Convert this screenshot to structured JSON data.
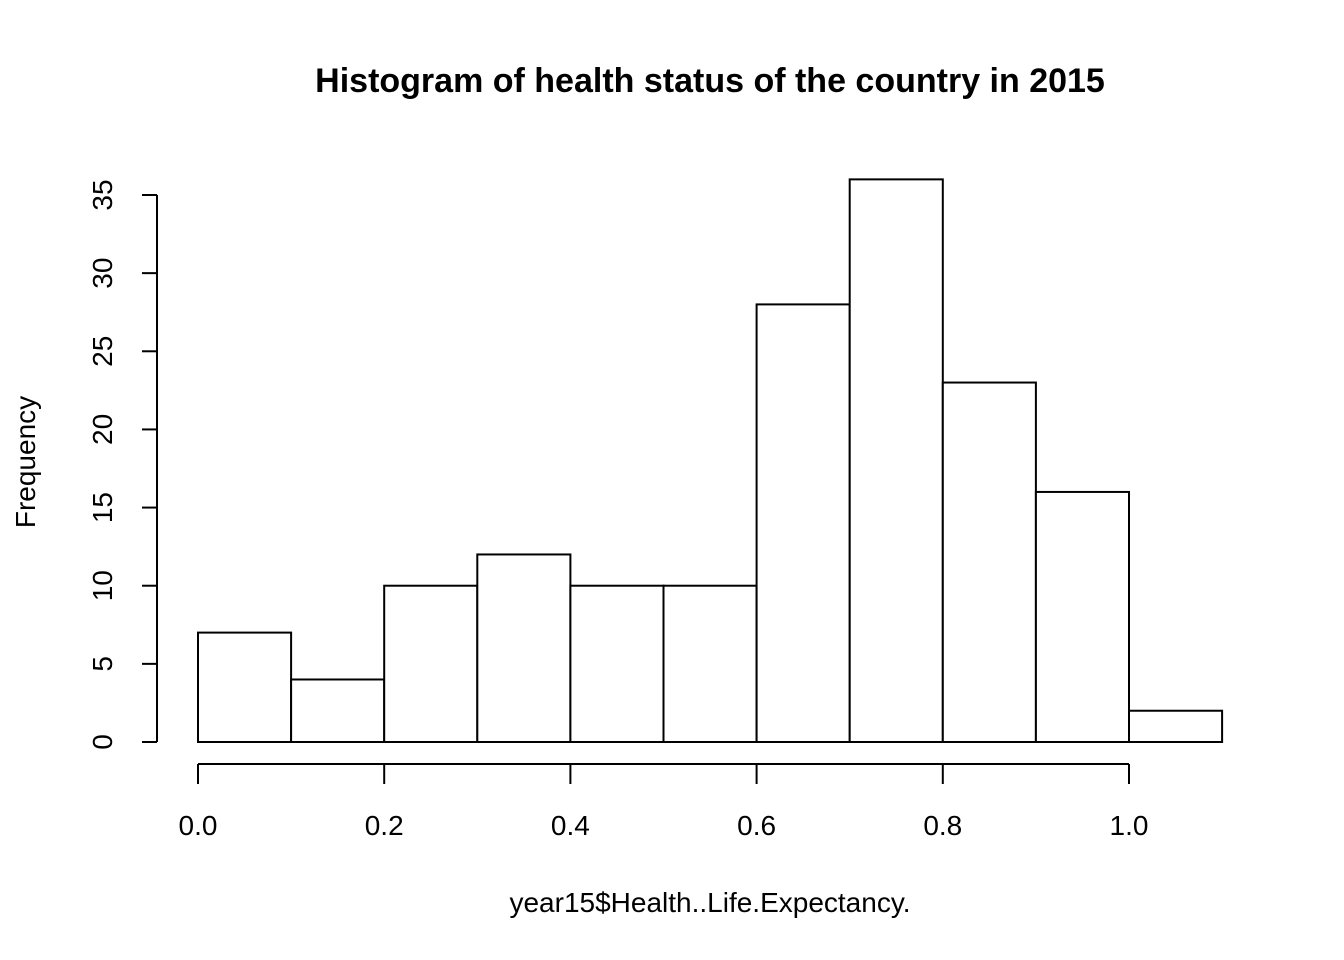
{
  "chart_data": {
    "type": "bar",
    "title": "Histogram of health status of the country in 2015",
    "xlabel": "year15$Health..Life.Expectancy.",
    "ylabel": "Frequency",
    "bin_edges": [
      0.0,
      0.1,
      0.2,
      0.3,
      0.4,
      0.5,
      0.6,
      0.7,
      0.8,
      0.9,
      1.0,
      1.1
    ],
    "values": [
      7,
      4,
      10,
      12,
      10,
      10,
      28,
      36,
      23,
      16,
      2
    ],
    "xlim": [
      0.0,
      1.1
    ],
    "ylim": [
      0,
      36
    ],
    "x_ticks": [
      0.0,
      0.2,
      0.4,
      0.6,
      0.8,
      1.0
    ],
    "x_tick_labels": [
      "0.0",
      "0.2",
      "0.4",
      "0.6",
      "0.8",
      "1.0"
    ],
    "y_ticks": [
      0,
      5,
      10,
      15,
      20,
      25,
      30,
      35
    ],
    "y_tick_labels": [
      "0",
      "5",
      "10",
      "15",
      "20",
      "25",
      "30",
      "35"
    ],
    "grid": false,
    "colors": {
      "bar_fill": "#ffffff",
      "bar_stroke": "#000000"
    }
  }
}
